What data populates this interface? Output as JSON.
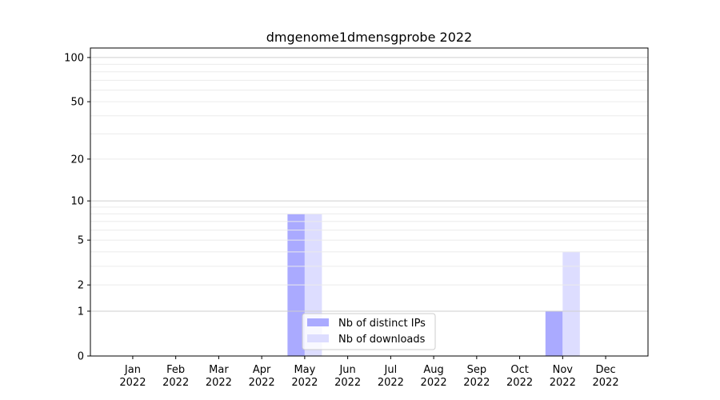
{
  "chart_data": {
    "type": "bar",
    "title": "dmgenome1dmensgprobe 2022",
    "xlabel": "",
    "ylabel": "",
    "yscale": "log(1+y)",
    "ylim": [
      0,
      116
    ],
    "yticks": [
      0,
      1,
      2,
      5,
      10,
      20,
      50,
      100
    ],
    "ytick_labels": [
      "0",
      "1",
      "2",
      "5",
      "10",
      "20",
      "50",
      "100"
    ],
    "grid": true,
    "categories": [
      "Jan\n2022",
      "Feb\n2022",
      "Mar\n2022",
      "Apr\n2022",
      "May\n2022",
      "Jun\n2022",
      "Jul\n2022",
      "Aug\n2022",
      "Sep\n2022",
      "Oct\n2022",
      "Nov\n2022",
      "Dec\n2022"
    ],
    "series": [
      {
        "name": "Nb of distinct IPs",
        "color": "#aaaaff",
        "values": [
          0,
          0,
          0,
          0,
          8,
          0,
          0,
          0,
          0,
          0,
          1,
          0
        ]
      },
      {
        "name": "Nb of downloads",
        "color": "#ddddff",
        "values": [
          0,
          0,
          0,
          0,
          8,
          0,
          0,
          0,
          0,
          0,
          4,
          0
        ]
      }
    ],
    "legend_placement": "lower-center"
  }
}
